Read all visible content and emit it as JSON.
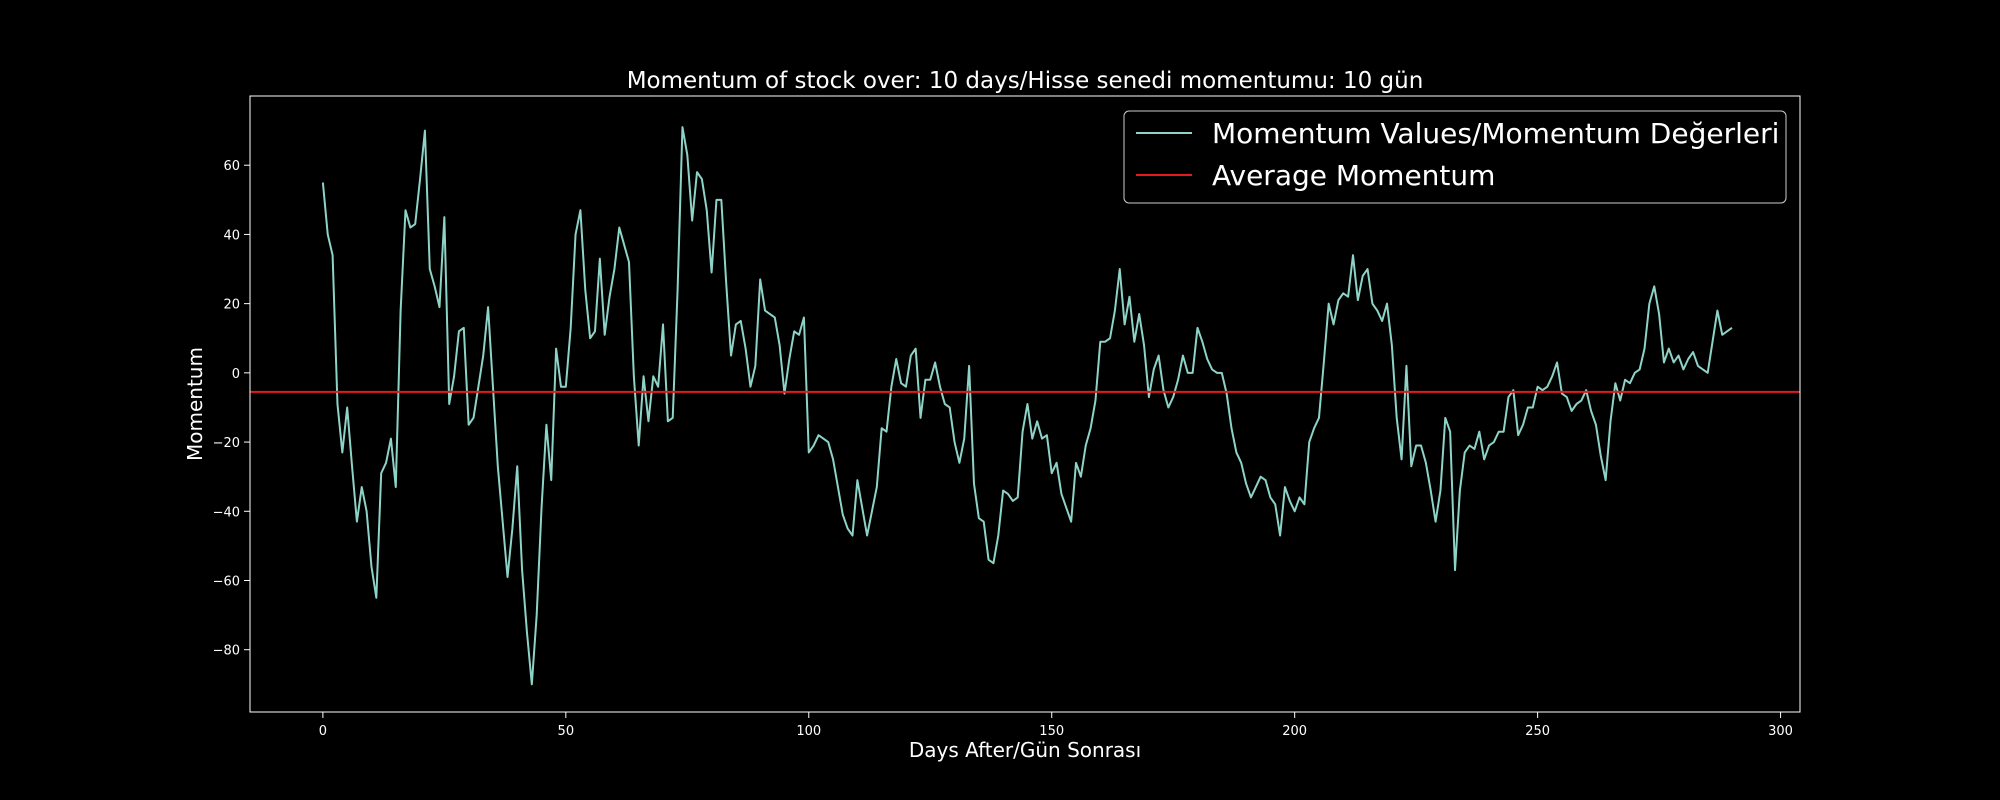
{
  "chart_data": {
    "type": "line",
    "title": "Momentum of stock over: 10 days/Hisse senedi momentumu: 10 gün",
    "xlabel": "Days After/Gün Sonrası",
    "ylabel": "Momentum",
    "xlim": [
      -15,
      304
    ],
    "ylim": [
      -98,
      80
    ],
    "xticks": [
      0,
      50,
      100,
      150,
      200,
      250,
      300
    ],
    "yticks": [
      -80,
      -60,
      -40,
      -20,
      0,
      20,
      40,
      60
    ],
    "grid": false,
    "legend_position": "top-right",
    "colors": {
      "background": "#000000",
      "momentum": "#8dd3c7",
      "average": "#e41a1c",
      "foreground": "#ffffff"
    },
    "series": [
      {
        "name": "Momentum Values/Momentum Değerleri",
        "values": [
          55,
          40,
          34,
          -9,
          -23,
          -10,
          -27,
          -43,
          -33,
          -40,
          -56,
          -65,
          -29,
          -26,
          -19,
          -33,
          18,
          47,
          42,
          43,
          56,
          70,
          30,
          25,
          19,
          45,
          -9,
          -1,
          12,
          13,
          -15,
          -13,
          -4,
          5,
          19,
          -4,
          -27,
          -43,
          -59,
          -45,
          -27,
          -57,
          -75,
          -90,
          -70,
          -39,
          -15,
          -31,
          7,
          -4,
          -4,
          13,
          40,
          47,
          24,
          10,
          12,
          33,
          11,
          22,
          30,
          42,
          37,
          32,
          -1,
          -21,
          -1,
          -14,
          -1,
          -4,
          14,
          -14,
          -13,
          24,
          71,
          63,
          44,
          58,
          56,
          47,
          29,
          50,
          50,
          26,
          5,
          14,
          15,
          7,
          -4,
          2,
          27,
          18,
          17,
          16,
          8,
          -6,
          4,
          12,
          11,
          16,
          -23,
          -21,
          -18,
          -19,
          -20,
          -25,
          -33,
          -41,
          -45,
          -47,
          -31,
          -39,
          -47,
          -40,
          -33,
          -16,
          -17,
          -4,
          4,
          -3,
          -4,
          5,
          7,
          -13,
          -2,
          -2,
          3,
          -4,
          -9,
          -10,
          -20,
          -26,
          -19,
          2,
          -32,
          -42,
          -43,
          -54,
          -55,
          -47,
          -34,
          -35,
          -37,
          -36,
          -17,
          -9,
          -19,
          -14,
          -19,
          -18,
          -29,
          -26,
          -35,
          -39,
          -43,
          -26,
          -30,
          -21,
          -16,
          -8,
          9,
          9,
          10,
          18,
          30,
          14,
          22,
          9,
          17,
          8,
          -7,
          1,
          5,
          -5,
          -10,
          -7,
          -2,
          5,
          0,
          0,
          13,
          9,
          4,
          1,
          0,
          0,
          -6,
          -16,
          -23,
          -26,
          -32,
          -36,
          -33,
          -30,
          -31,
          -36,
          -38,
          -47,
          -33,
          -37,
          -40,
          -36,
          -38,
          -20,
          -16,
          -13,
          3,
          20,
          14,
          21,
          23,
          22,
          34,
          21,
          28,
          30,
          20,
          18,
          15,
          20,
          8,
          -13,
          -25,
          2,
          -27,
          -21,
          -21,
          -26,
          -34,
          -43,
          -34,
          -13,
          -17,
          -57,
          -34,
          -23,
          -21,
          -22,
          -17,
          -25,
          -21,
          -20,
          -17,
          -17,
          -7,
          -5,
          -18,
          -15,
          -10,
          -10,
          -4,
          -5,
          -4,
          -1,
          3,
          -6,
          -7,
          -11,
          -9,
          -8,
          -5,
          -11,
          -15,
          -24,
          -31,
          -14,
          -3,
          -8,
          -2,
          -3,
          0,
          1,
          7,
          20,
          25,
          17,
          3,
          7,
          3,
          5,
          1,
          4,
          6,
          2,
          1,
          0,
          9,
          18,
          11,
          12,
          13
        ]
      },
      {
        "name": "Average Momentum",
        "value": -5.5
      }
    ]
  }
}
